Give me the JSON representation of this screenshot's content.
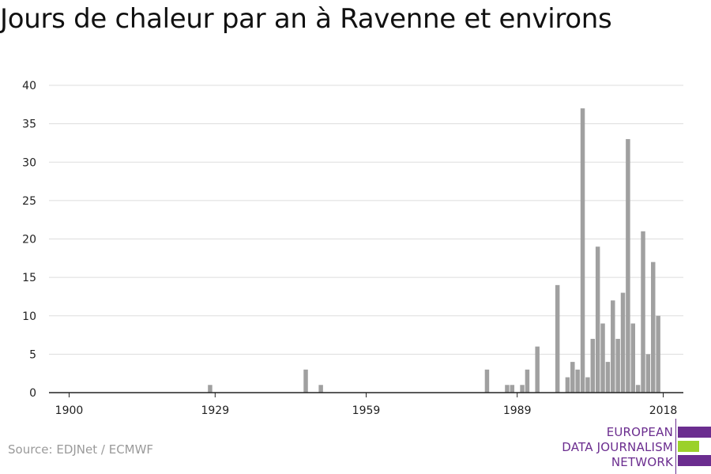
{
  "colors": {
    "bar": "#a0a0a0",
    "grid": "#dddddd",
    "axis": "#222222",
    "logo_purple": "#6b2d8f",
    "logo_green": "#9bd12a"
  },
  "source": "Source: EDJNet / ECMWF",
  "logo": {
    "lines": [
      "EUROPEAN",
      "DATA JOURNALISM",
      "NETWORK"
    ]
  },
  "chart_data": {
    "type": "bar",
    "title": "Jours de chaleur par an à Ravenne et environs",
    "xlabel": "",
    "ylabel": "",
    "xlim": [
      1896,
      2022
    ],
    "ylim": [
      0,
      40
    ],
    "y_ticks": [
      0,
      5,
      10,
      15,
      20,
      25,
      30,
      35,
      40
    ],
    "x_ticks": [
      "1900",
      "1929",
      "1959",
      "1989",
      "2018"
    ],
    "grid": true,
    "x": [
      1928,
      1947,
      1950,
      1983,
      1987,
      1988,
      1990,
      1991,
      1993,
      1997,
      1999,
      2000,
      2001,
      2002,
      2003,
      2004,
      2005,
      2006,
      2007,
      2008,
      2009,
      2010,
      2011,
      2012,
      2013,
      2014,
      2015,
      2016,
      2017,
      2018
    ],
    "values": [
      1,
      3,
      1,
      3,
      1,
      1,
      1,
      3,
      6,
      14,
      2,
      4,
      3,
      37,
      2,
      7,
      19,
      9,
      4,
      12,
      7,
      13,
      33,
      9,
      1,
      21,
      5,
      17,
      10,
      0
    ]
  }
}
